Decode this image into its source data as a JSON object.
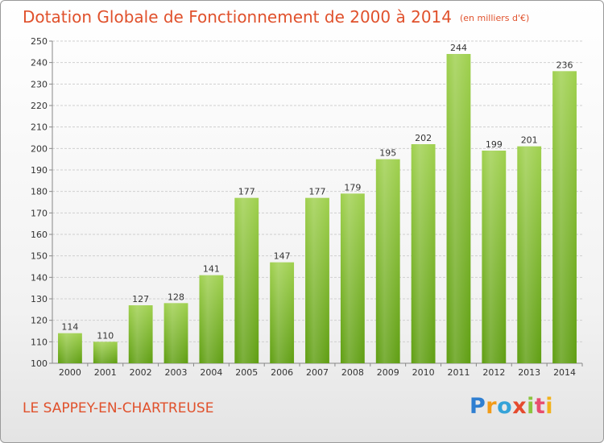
{
  "title": "Dotation Globale de Fonctionnement de 2000 à 2014",
  "unit_label": "(en milliers d'€)",
  "commune": "LE SAPPEY-EN-CHARTREUSE",
  "brand": {
    "letters": [
      "P",
      "r",
      "o",
      "x",
      "i",
      "t",
      "i"
    ],
    "colors": [
      "#2f7fd1",
      "#f29b18",
      "#35a3d8",
      "#e54a2e",
      "#8bc43f",
      "#e84d6f",
      "#f2b21b"
    ]
  },
  "chart_data": {
    "type": "bar",
    "categories": [
      "2000",
      "2001",
      "2002",
      "2003",
      "2004",
      "2005",
      "2006",
      "2007",
      "2008",
      "2009",
      "2010",
      "2011",
      "2012",
      "2013",
      "2014"
    ],
    "values": [
      114,
      110,
      127,
      128,
      141,
      177,
      147,
      177,
      179,
      195,
      202,
      244,
      199,
      201,
      236
    ],
    "ylim": [
      100,
      250
    ],
    "yticks": [
      100,
      110,
      120,
      130,
      140,
      150,
      160,
      170,
      180,
      190,
      200,
      210,
      220,
      230,
      240,
      250
    ],
    "grid": true,
    "bar_color_top": "#9fd04e",
    "bar_color_bottom": "#5f9e12"
  }
}
